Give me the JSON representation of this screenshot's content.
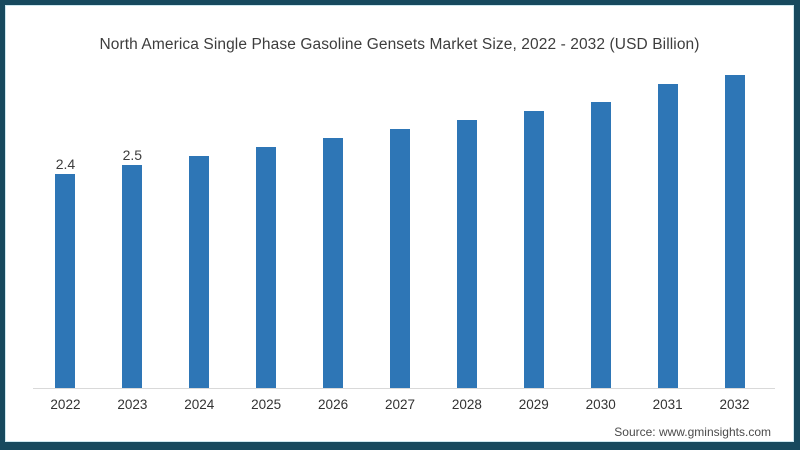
{
  "frame": {
    "border_color": "#17495e",
    "background": "#ffffff"
  },
  "title": "North America Single Phase Gasoline Gensets Market Size, 2022 - 2032 (USD Billion)",
  "source": {
    "text": "Source: www.gminsights.com"
  },
  "chart_data": {
    "type": "bar",
    "title": "North America Single Phase Gasoline Gensets Market Size, 2022 - 2032 (USD Billion)",
    "unit": "USD Billion",
    "categories": [
      "2022",
      "2023",
      "2024",
      "2025",
      "2026",
      "2027",
      "2028",
      "2029",
      "2030",
      "2031",
      "2032"
    ],
    "values": [
      2.4,
      2.5,
      2.6,
      2.7,
      2.8,
      2.9,
      3.0,
      3.1,
      3.2,
      3.4,
      3.5
    ],
    "bar_labels": [
      "2.4",
      "2.5",
      "",
      "",
      "",
      "",
      "",
      "",
      "",
      "",
      ""
    ],
    "bar_color": "#2e76b6",
    "axis_line_color": "#d9d9d9",
    "text_color": "#3d3d3d",
    "xlabel": "",
    "ylabel": "",
    "ylim": [
      0,
      4.2
    ],
    "grid": false,
    "legend": false
  }
}
